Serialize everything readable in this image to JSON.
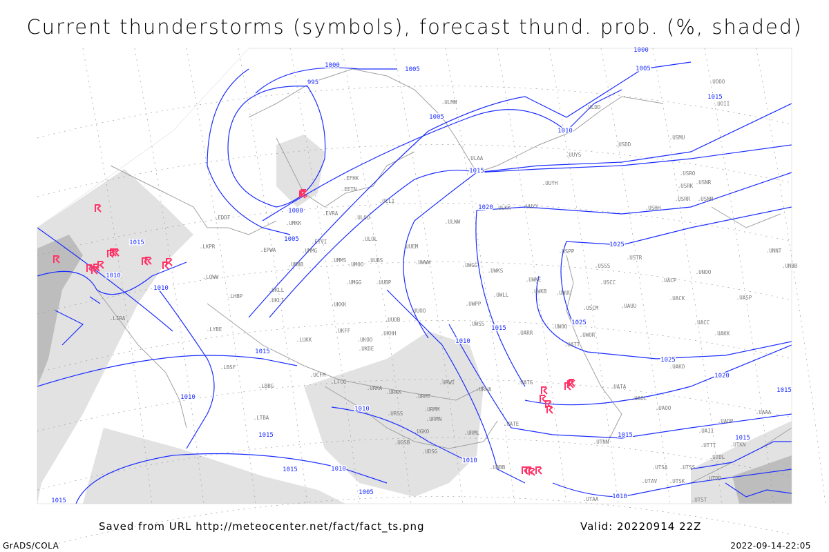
{
  "title": "Current thunderstorms (symbols), forecast thund. prob. (%, shaded)",
  "footer": {
    "saved_from": "Saved from URL http://meteocenter.net/fact/fact_ts.png",
    "valid": "Valid: 20220914 22Z",
    "credit": "GrADS/COLA",
    "timestamp": "2022-09-14-22:05"
  },
  "colors": {
    "isobar": "#1a2cff",
    "coast": "#a0a0a0",
    "shade_light": "#e2e2e2",
    "shade_dark": "#bdbdbd",
    "thunderstorm": "#ff3366",
    "grid": "#9a9a9a"
  },
  "map": {
    "isobar_labels": [
      "1000",
      "1005",
      "995",
      "1000",
      "1005",
      "1005",
      "1010",
      "1015",
      "1020",
      "1025",
      "1025",
      "1020",
      "1015",
      "1010",
      "1015",
      "1015",
      "1010",
      "1015",
      "1010",
      "1010",
      "1005",
      "1015",
      "1015",
      "1010",
      "1010",
      "1025",
      "1000",
      "1005",
      "1015",
      "1015",
      "1010",
      "1015",
      "1010",
      "1015"
    ],
    "stations": [
      "EDDT",
      "LKPR",
      "EPWA",
      "UMMG",
      "UMBB",
      "EYVI",
      "EVRA",
      "ULOO",
      "ULOL",
      "UMMS",
      "UMOO",
      "UUBS",
      "UUEM",
      "UWWW",
      "UWGG",
      "UWKS",
      "UWKE",
      "UWKB",
      "UWUU",
      "USPP",
      "USSS",
      "USCC",
      "USTR",
      "UACP",
      "UNOO",
      "UNNT",
      "UNBB",
      "UACK",
      "UASP",
      "UAUU",
      "USCM",
      "UACC",
      "UAKK",
      "UAKO",
      "UWOO",
      "UWOR",
      "UATT",
      "UARR",
      "UWSS",
      "UWPP",
      "UWLL",
      "UUOO",
      "UUOB",
      "UKHH",
      "UKOO",
      "UKDE",
      "UKFF",
      "UKKK",
      "UMGG",
      "UUBP",
      "UKLL",
      "UKLI",
      "LHBP",
      "LOWW",
      "LYBE",
      "LUKK",
      "LBSF",
      "LBBG",
      "LTBA",
      "LTCG",
      "URKA",
      "URKK",
      "URSS",
      "UGKO",
      "UGSB",
      "UDSG",
      "URMT",
      "URMM",
      "URMN",
      "URWI",
      "URWA",
      "URML",
      "UATG",
      "UATE",
      "UBBB",
      "UTNN",
      "UAOO",
      "UAOL",
      "UATA",
      "UADP",
      "UAII",
      "UTTT",
      "UTKN",
      "UTDL",
      "UTSS",
      "UTSA",
      "UTAV",
      "UTSK",
      "UTDD",
      "UTST",
      "UTAA",
      "UAAA",
      "USMU",
      "USDD",
      "UUYS",
      "UOOO",
      "UOII",
      "ULDD",
      "ULMM",
      "ULAA",
      "EFHK",
      "EETN",
      "ULLI",
      "UUYH",
      "ULKK",
      "UUYY",
      "USHH",
      "USRR",
      "USNN",
      "USRK",
      "USNR",
      "USRO",
      "ULWW",
      "UMKK",
      "LIRA",
      "UCFM"
    ],
    "thunderstorm_count": 26,
    "thunderstorm_symbol": "thunderstorm-icon"
  }
}
